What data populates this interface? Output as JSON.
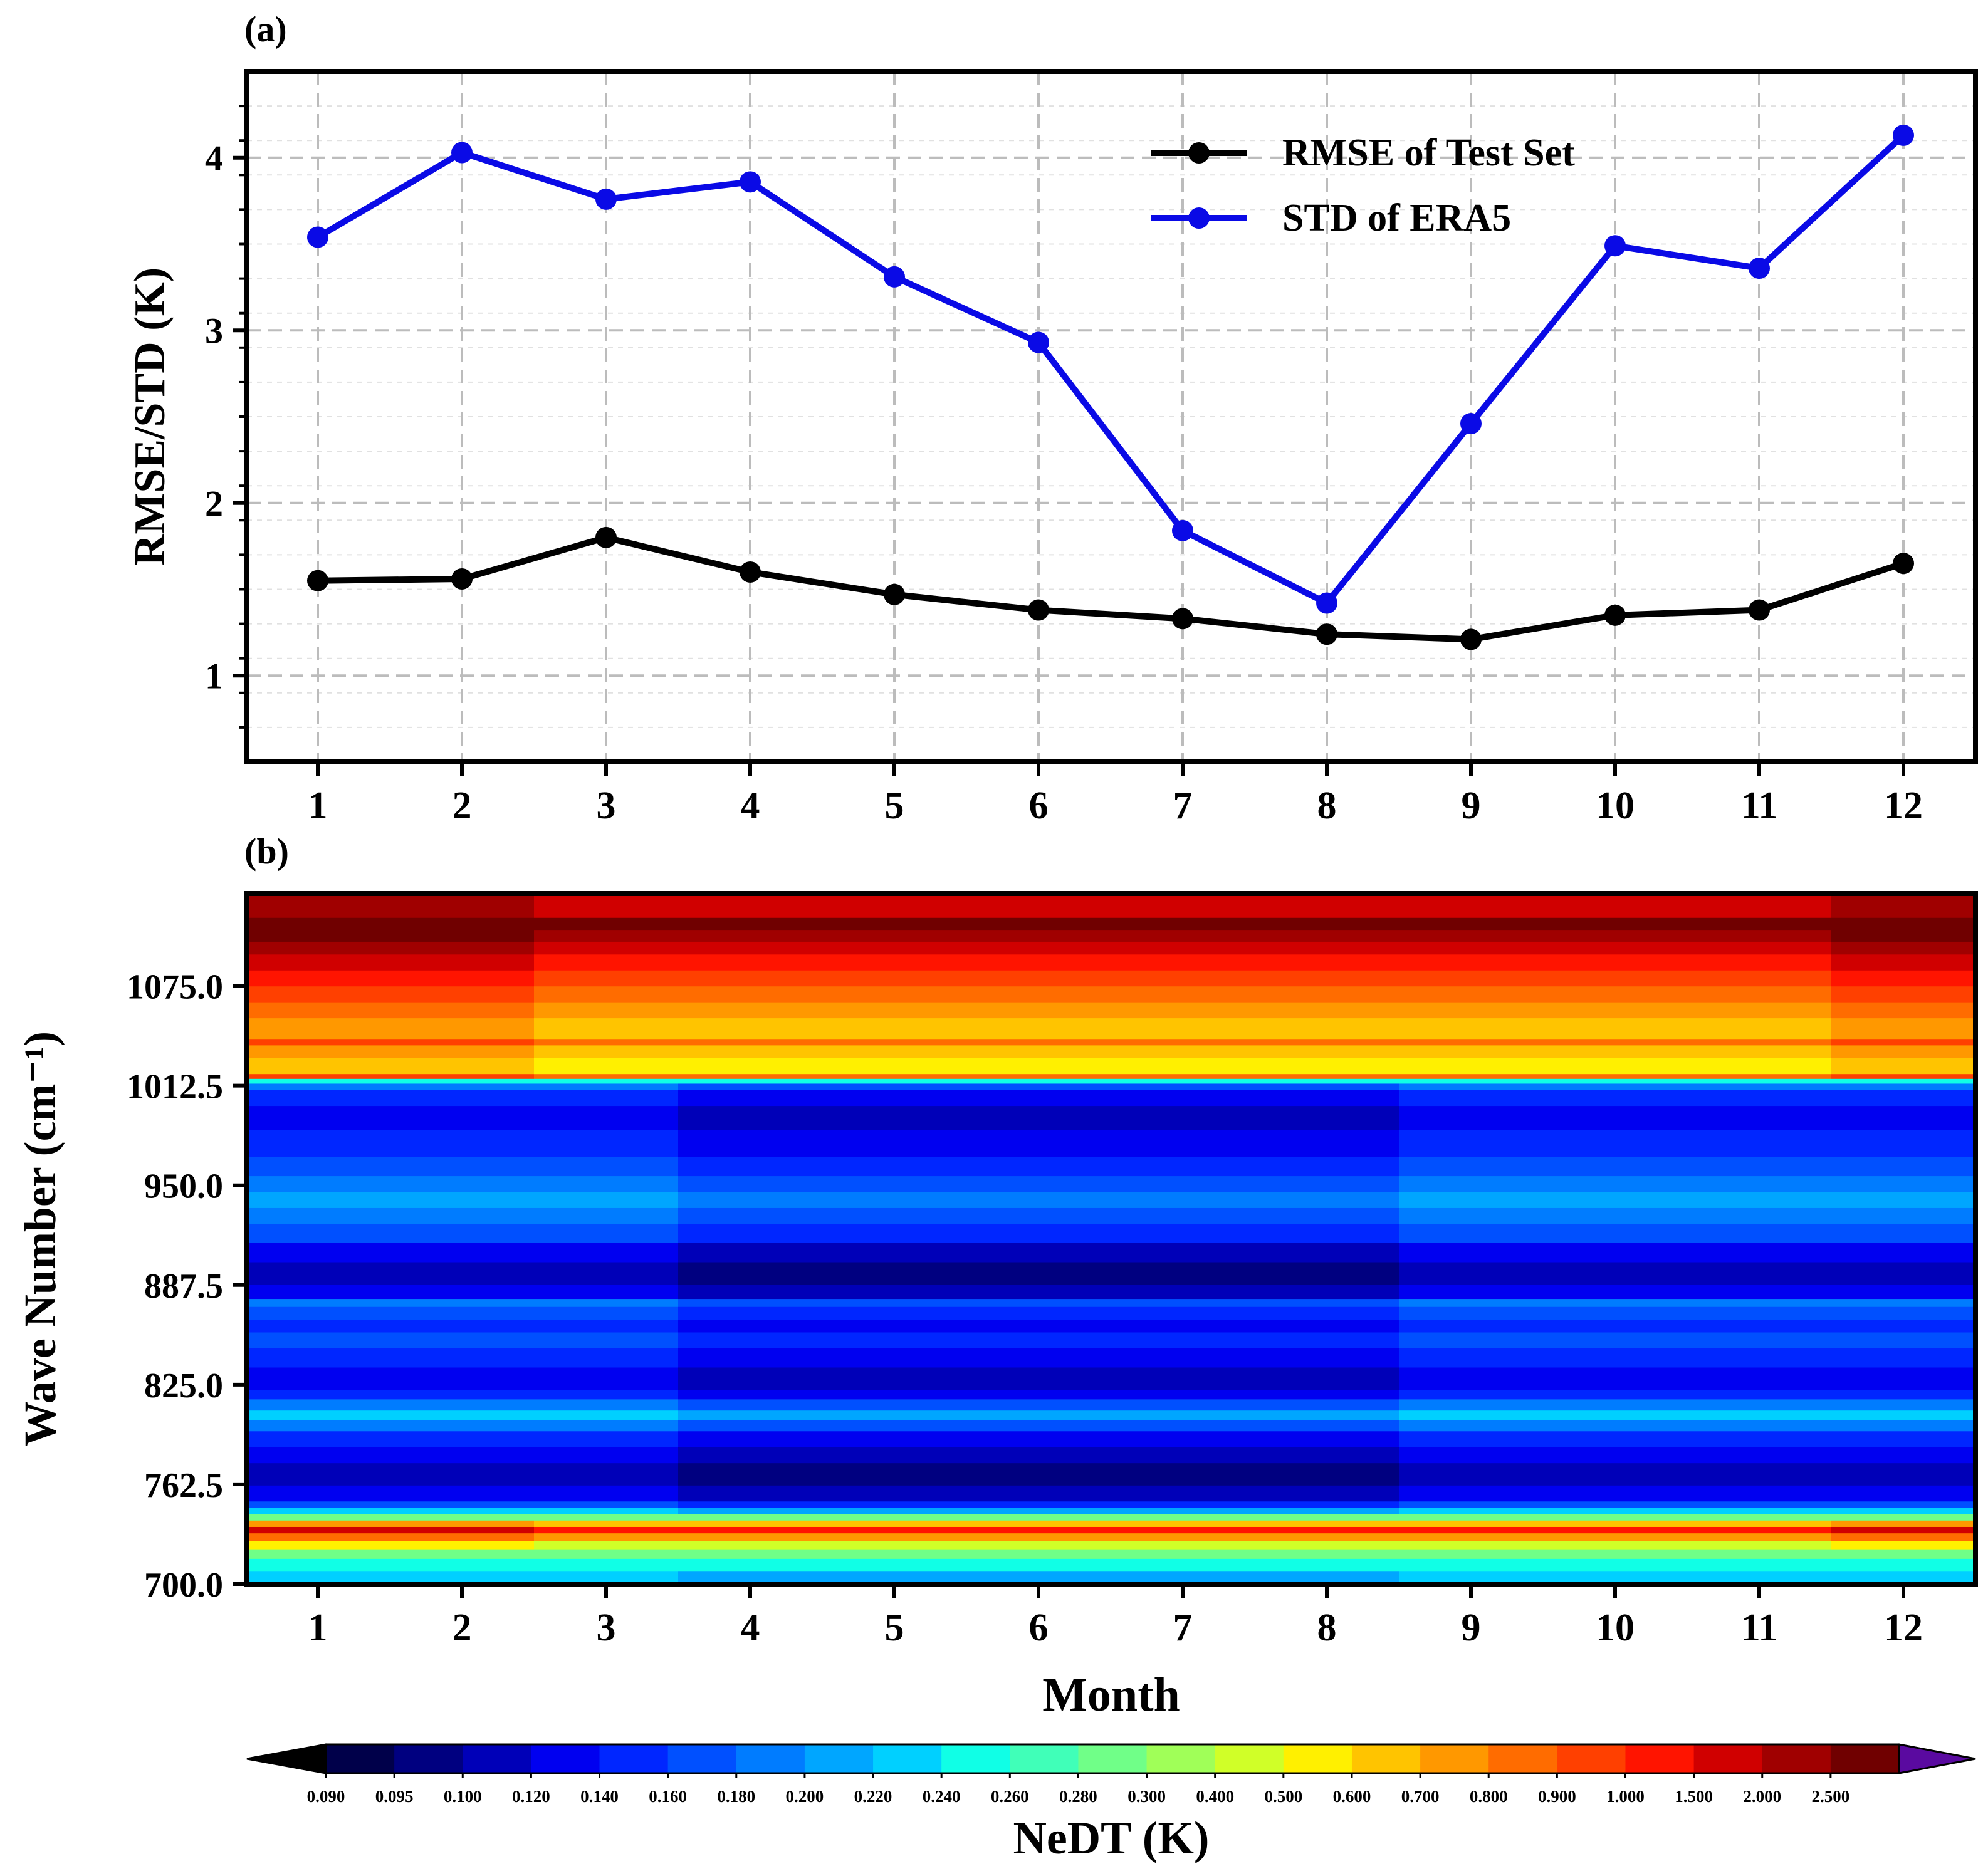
{
  "chart_data": [
    {
      "panel_label": "(a)",
      "type": "line",
      "ylabel": "RMSE/STD (K)",
      "xlabel": "",
      "categories": [
        "1",
        "2",
        "3",
        "4",
        "5",
        "6",
        "7",
        "8",
        "9",
        "10",
        "11",
        "12"
      ],
      "yticks": [
        "1",
        "2",
        "3",
        "4"
      ],
      "ylim": [
        0.5,
        4.5
      ],
      "grid": true,
      "legend_position": "top-right",
      "series": [
        {
          "name": "RMSE of Test Set",
          "color": "#000000",
          "values": [
            1.55,
            1.56,
            1.8,
            1.6,
            1.47,
            1.38,
            1.33,
            1.24,
            1.21,
            1.35,
            1.38,
            1.65
          ]
        },
        {
          "name": "STD of ERA5",
          "color": "#0a0ae6",
          "values": [
            3.54,
            4.03,
            3.76,
            3.86,
            3.31,
            2.93,
            1.84,
            1.42,
            2.46,
            3.49,
            3.36,
            4.13
          ]
        }
      ]
    },
    {
      "panel_label": "(b)",
      "type": "heatmap",
      "xlabel": "Month",
      "ylabel": "Wave Number (cm⁻¹)",
      "categories": [
        "1",
        "2",
        "3",
        "4",
        "5",
        "6",
        "7",
        "8",
        "9",
        "10",
        "11",
        "12"
      ],
      "yticks": [
        "700.0",
        "762.5",
        "825.0",
        "887.5",
        "950.0",
        "1012.5",
        "1075.0"
      ],
      "ylim": [
        700,
        1133
      ],
      "colorbar": {
        "label": "NeDT (K)",
        "levels": [
          "0.090",
          "0.095",
          "0.100",
          "0.120",
          "0.140",
          "0.160",
          "0.180",
          "0.200",
          "0.220",
          "0.240",
          "0.260",
          "0.280",
          "0.300",
          "0.400",
          "0.500",
          "0.600",
          "0.700",
          "0.800",
          "0.900",
          "1.000",
          "1.500",
          "2.000",
          "2.500"
        ],
        "colors": [
          "#00004a",
          "#000080",
          "#0000b8",
          "#0000f0",
          "#0026ff",
          "#0050ff",
          "#007cff",
          "#00a6ff",
          "#00d0ff",
          "#10ffe6",
          "#40ffb8",
          "#70ff88",
          "#a0ff58",
          "#d0ff28",
          "#fff000",
          "#ffc400",
          "#ff9800",
          "#ff6c00",
          "#ff4000",
          "#ff1400",
          "#d00000",
          "#a00000",
          "#700000"
        ],
        "under_color": "#000000",
        "over_color": "#5a0aa0"
      },
      "bands": [
        {
          "from": 700,
          "to": 708,
          "level": 8
        },
        {
          "from": 708,
          "to": 716,
          "level": 9
        },
        {
          "from": 716,
          "to": 722,
          "level": 11
        },
        {
          "from": 722,
          "to": 727,
          "level": 13
        },
        {
          "from": 727,
          "to": 732,
          "level": 16
        },
        {
          "from": 732,
          "to": 736,
          "level": 19
        },
        {
          "from": 736,
          "to": 740,
          "level": 15
        },
        {
          "from": 740,
          "to": 744,
          "level": 11
        },
        {
          "from": 744,
          "to": 748,
          "level": 8
        },
        {
          "from": 748,
          "to": 752,
          "level": 5
        },
        {
          "from": 752,
          "to": 762,
          "level": 3
        },
        {
          "from": 762,
          "to": 776,
          "level": 2
        },
        {
          "from": 776,
          "to": 786,
          "level": 3
        },
        {
          "from": 786,
          "to": 796,
          "level": 4
        },
        {
          "from": 796,
          "to": 803,
          "level": 6
        },
        {
          "from": 803,
          "to": 809,
          "level": 8
        },
        {
          "from": 809,
          "to": 816,
          "level": 6
        },
        {
          "from": 816,
          "to": 822,
          "level": 4
        },
        {
          "from": 822,
          "to": 836,
          "level": 3
        },
        {
          "from": 836,
          "to": 848,
          "level": 4
        },
        {
          "from": 848,
          "to": 858,
          "level": 5
        },
        {
          "from": 858,
          "to": 866,
          "level": 4
        },
        {
          "from": 866,
          "to": 874,
          "level": 5
        },
        {
          "from": 874,
          "to": 879,
          "level": 6
        },
        {
          "from": 879,
          "to": 888,
          "level": 3
        },
        {
          "from": 888,
          "to": 902,
          "level": 2
        },
        {
          "from": 902,
          "to": 914,
          "level": 3
        },
        {
          "from": 914,
          "to": 926,
          "level": 5
        },
        {
          "from": 926,
          "to": 936,
          "level": 6
        },
        {
          "from": 936,
          "to": 946,
          "level": 7
        },
        {
          "from": 946,
          "to": 956,
          "level": 6
        },
        {
          "from": 956,
          "to": 968,
          "level": 5
        },
        {
          "from": 968,
          "to": 985,
          "level": 4
        },
        {
          "from": 985,
          "to": 1000,
          "level": 3
        },
        {
          "from": 1000,
          "to": 1010,
          "level": 4
        },
        {
          "from": 1010,
          "to": 1014,
          "level": 6
        },
        {
          "from": 1014,
          "to": 1017,
          "level": 9
        },
        {
          "from": 1017,
          "to": 1020,
          "level": 17
        },
        {
          "from": 1020,
          "to": 1030,
          "level": 14
        },
        {
          "from": 1030,
          "to": 1038,
          "level": 15
        },
        {
          "from": 1038,
          "to": 1042,
          "level": 17
        },
        {
          "from": 1042,
          "to": 1055,
          "level": 15
        },
        {
          "from": 1055,
          "to": 1065,
          "level": 16
        },
        {
          "from": 1065,
          "to": 1075,
          "level": 17
        },
        {
          "from": 1075,
          "to": 1085,
          "level": 18
        },
        {
          "from": 1085,
          "to": 1095,
          "level": 19
        },
        {
          "from": 1095,
          "to": 1103,
          "level": 20
        },
        {
          "from": 1103,
          "to": 1110,
          "level": 21
        },
        {
          "from": 1110,
          "to": 1118,
          "level": 22
        },
        {
          "from": 1118,
          "to": 1133,
          "level": 20
        }
      ],
      "month_offsets": [
        1,
        1,
        0,
        -1,
        -1,
        -1,
        -1,
        -1,
        0,
        0,
        0,
        1
      ]
    }
  ]
}
